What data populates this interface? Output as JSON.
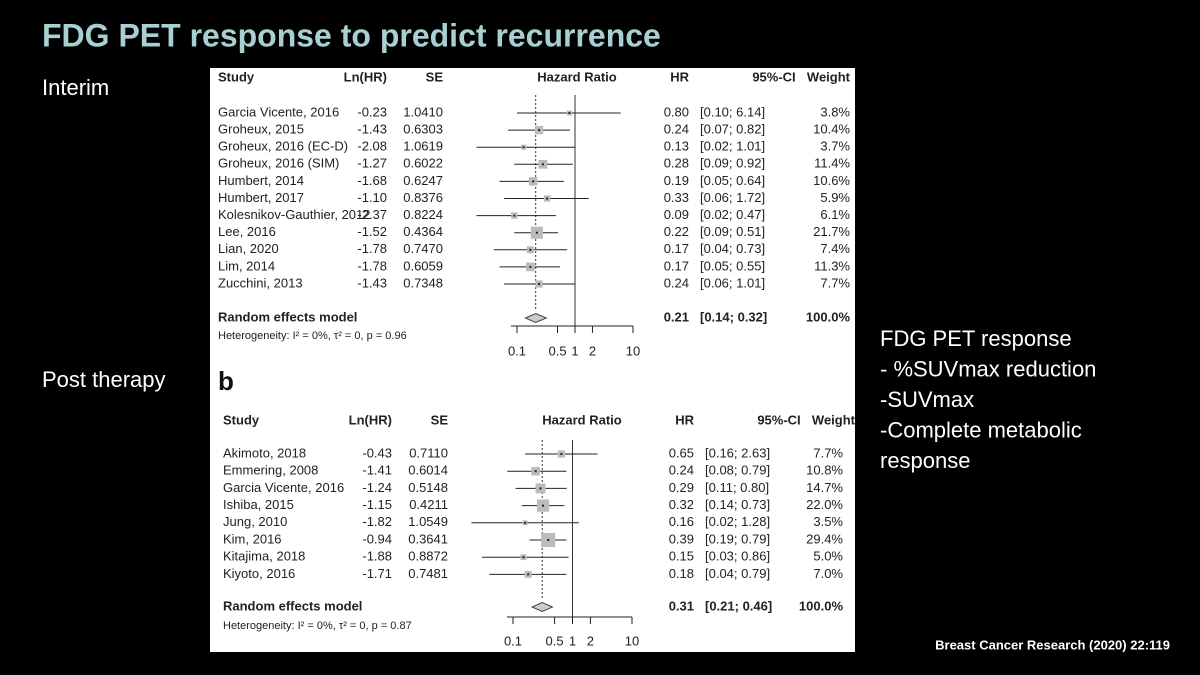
{
  "title": "FDG PET response to predict recurrence",
  "left_labels": [
    "Interim",
    "Post therapy"
  ],
  "notes": [
    "FDG PET response",
    "- %SUVmax reduction",
    "-SUVmax",
    "-Complete metabolic",
    "response"
  ],
  "citation": "Breast Cancer Research (2020) 22:119",
  "panels": [
    {
      "columns": [
        "Study",
        "Ln(HR)",
        "SE",
        "Hazard Ratio",
        "HR",
        "95%-CI",
        "Weight"
      ],
      "rows": [
        {
          "study": "Garcia Vicente, 2016",
          "lnhr": "-0.23",
          "se": "1.0410",
          "hr": 0.8,
          "hr_label": "0.80",
          "ci_low": 0.1,
          "ci_high": 6.14,
          "ci_label": "[0.10; 6.14]",
          "weight": 3.8,
          "weight_label": "3.8%"
        },
        {
          "study": "Groheux, 2015",
          "lnhr": "-1.43",
          "se": "0.6303",
          "hr": 0.24,
          "hr_label": "0.24",
          "ci_low": 0.07,
          "ci_high": 0.82,
          "ci_label": "[0.07; 0.82]",
          "weight": 10.4,
          "weight_label": "10.4%"
        },
        {
          "study": "Groheux, 2016 (EC-D)",
          "lnhr": "-2.08",
          "se": "1.0619",
          "hr": 0.13,
          "hr_label": "0.13",
          "ci_low": 0.02,
          "ci_high": 1.01,
          "ci_label": "[0.02; 1.01]",
          "weight": 3.7,
          "weight_label": "3.7%"
        },
        {
          "study": "Groheux, 2016 (SIM)",
          "lnhr": "-1.27",
          "se": "0.6022",
          "hr": 0.28,
          "hr_label": "0.28",
          "ci_low": 0.09,
          "ci_high": 0.92,
          "ci_label": "[0.09; 0.92]",
          "weight": 11.4,
          "weight_label": "11.4%"
        },
        {
          "study": "Humbert, 2014",
          "lnhr": "-1.68",
          "se": "0.6247",
          "hr": 0.19,
          "hr_label": "0.19",
          "ci_low": 0.05,
          "ci_high": 0.64,
          "ci_label": "[0.05; 0.64]",
          "weight": 10.6,
          "weight_label": "10.6%"
        },
        {
          "study": "Humbert, 2017",
          "lnhr": "-1.10",
          "se": "0.8376",
          "hr": 0.33,
          "hr_label": "0.33",
          "ci_low": 0.06,
          "ci_high": 1.72,
          "ci_label": "[0.06; 1.72]",
          "weight": 5.9,
          "weight_label": "5.9%"
        },
        {
          "study": "Kolesnikov-Gauthier, 2012",
          "lnhr": "-2.37",
          "se": "0.8224",
          "hr": 0.09,
          "hr_label": "0.09",
          "ci_low": 0.02,
          "ci_high": 0.47,
          "ci_label": "[0.02; 0.47]",
          "weight": 6.1,
          "weight_label": "6.1%"
        },
        {
          "study": "Lee, 2016",
          "lnhr": "-1.52",
          "se": "0.4364",
          "hr": 0.22,
          "hr_label": "0.22",
          "ci_low": 0.09,
          "ci_high": 0.51,
          "ci_label": "[0.09; 0.51]",
          "weight": 21.7,
          "weight_label": "21.7%"
        },
        {
          "study": "Lian, 2020",
          "lnhr": "-1.78",
          "se": "0.7470",
          "hr": 0.17,
          "hr_label": "0.17",
          "ci_low": 0.04,
          "ci_high": 0.73,
          "ci_label": "[0.04; 0.73]",
          "weight": 7.4,
          "weight_label": "7.4%"
        },
        {
          "study": "Lim, 2014",
          "lnhr": "-1.78",
          "se": "0.6059",
          "hr": 0.17,
          "hr_label": "0.17",
          "ci_low": 0.05,
          "ci_high": 0.55,
          "ci_label": "[0.05; 0.55]",
          "weight": 11.3,
          "weight_label": "11.3%"
        },
        {
          "study": "Zucchini, 2013",
          "lnhr": "-1.43",
          "se": "0.7348",
          "hr": 0.24,
          "hr_label": "0.24",
          "ci_low": 0.06,
          "ci_high": 1.01,
          "ci_label": "[0.06; 1.01]",
          "weight": 7.7,
          "weight_label": "7.7%"
        }
      ],
      "summary": {
        "study": "Random effects model",
        "hr": 0.21,
        "hr_label": "0.21",
        "ci_low": 0.14,
        "ci_high": 0.32,
        "ci_label": "[0.14; 0.32]",
        "weight_label": "100.0%"
      },
      "heterogeneity": "Heterogeneity: I² = 0%, τ² = 0, p = 0.96",
      "xlim": [
        0.1,
        10
      ],
      "xticks": [
        0.1,
        0.5,
        1,
        2,
        10
      ],
      "log_scale": true
    },
    {
      "label": "b",
      "columns": [
        "Study",
        "Ln(HR)",
        "SE",
        "Hazard Ratio",
        "HR",
        "95%-CI",
        "Weight"
      ],
      "rows": [
        {
          "study": "Akimoto, 2018",
          "lnhr": "-0.43",
          "se": "0.7110",
          "hr": 0.65,
          "hr_label": "0.65",
          "ci_low": 0.16,
          "ci_high": 2.63,
          "ci_label": "[0.16; 2.63]",
          "weight": 7.7,
          "weight_label": "7.7%"
        },
        {
          "study": "Emmering, 2008",
          "lnhr": "-1.41",
          "se": "0.6014",
          "hr": 0.24,
          "hr_label": "0.24",
          "ci_low": 0.08,
          "ci_high": 0.79,
          "ci_label": "[0.08; 0.79]",
          "weight": 10.8,
          "weight_label": "10.8%"
        },
        {
          "study": "Garcia Vicente, 2016",
          "lnhr": "-1.24",
          "se": "0.5148",
          "hr": 0.29,
          "hr_label": "0.29",
          "ci_low": 0.11,
          "ci_high": 0.8,
          "ci_label": "[0.11; 0.80]",
          "weight": 14.7,
          "weight_label": "14.7%"
        },
        {
          "study": "Ishiba, 2015",
          "lnhr": "-1.15",
          "se": "0.4211",
          "hr": 0.32,
          "hr_label": "0.32",
          "ci_low": 0.14,
          "ci_high": 0.73,
          "ci_label": "[0.14; 0.73]",
          "weight": 22.0,
          "weight_label": "22.0%"
        },
        {
          "study": "Jung, 2010",
          "lnhr": "-1.82",
          "se": "1.0549",
          "hr": 0.16,
          "hr_label": "0.16",
          "ci_low": 0.02,
          "ci_high": 1.28,
          "ci_label": "[0.02; 1.28]",
          "weight": 3.5,
          "weight_label": "3.5%"
        },
        {
          "study": "Kim, 2016",
          "lnhr": "-0.94",
          "se": "0.3641",
          "hr": 0.39,
          "hr_label": "0.39",
          "ci_low": 0.19,
          "ci_high": 0.79,
          "ci_label": "[0.19; 0.79]",
          "weight": 29.4,
          "weight_label": "29.4%"
        },
        {
          "study": "Kitajima, 2018",
          "lnhr": "-1.88",
          "se": "0.8872",
          "hr": 0.15,
          "hr_label": "0.15",
          "ci_low": 0.03,
          "ci_high": 0.86,
          "ci_label": "[0.03; 0.86]",
          "weight": 5.0,
          "weight_label": "5.0%"
        },
        {
          "study": "Kiyoto, 2016",
          "lnhr": "-1.71",
          "se": "0.7481",
          "hr": 0.18,
          "hr_label": "0.18",
          "ci_low": 0.04,
          "ci_high": 0.79,
          "ci_label": "[0.04; 0.79]",
          "weight": 7.0,
          "weight_label": "7.0%"
        }
      ],
      "summary": {
        "study": "Random effects model",
        "hr": 0.31,
        "hr_label": "0.31",
        "ci_low": 0.21,
        "ci_high": 0.46,
        "ci_label": "[0.21; 0.46]",
        "weight_label": "100.0%"
      },
      "heterogeneity": "Heterogeneity: I² = 0%, τ² = 0, p = 0.87",
      "xlim": [
        0.1,
        10
      ],
      "xticks": [
        0.1,
        0.5,
        1,
        2,
        10
      ],
      "log_scale": true
    }
  ]
}
